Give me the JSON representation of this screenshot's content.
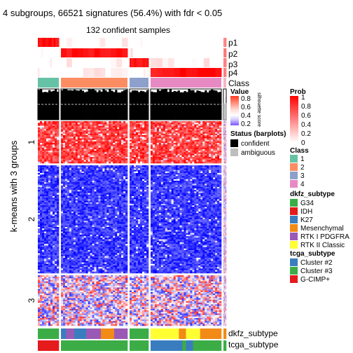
{
  "title": "4 subgroups, 66521 signatures (56.4%) with fdr < 0.05",
  "subtitle": "132 confident samples",
  "row_title": "k-means with 3 groups",
  "row_groups": [
    "1",
    "2",
    "3"
  ],
  "track_labels": {
    "p1": "p1",
    "p2": "p2",
    "p3": "p3",
    "p4": "p4",
    "class": "Class",
    "dkfz": "dkfz_subtype",
    "tcga": "tcga_subtype"
  },
  "silhouette_legend": {
    "title": "Value",
    "ticks": [
      "0.8",
      "0.6",
      "0.4",
      "0.2"
    ],
    "side_label": "silhouette score"
  },
  "status_legend": {
    "title": "Status (barplots)",
    "items": [
      {
        "label": "confident",
        "color": "#000000"
      },
      {
        "label": "ambiguous",
        "color": "#bebebe"
      }
    ]
  },
  "prob_legend": {
    "title": "Prob",
    "ticks": [
      "1",
      "0.8",
      "0.6",
      "0.4",
      "0.2",
      "0"
    ]
  },
  "class_legend": {
    "title": "Class",
    "items": [
      {
        "label": "1",
        "color": "#66c2a5"
      },
      {
        "label": "2",
        "color": "#fc8d62"
      },
      {
        "label": "3",
        "color": "#8da0cb"
      },
      {
        "label": "4",
        "color": "#e78ac3"
      }
    ]
  },
  "dkfz_legend": {
    "title": "dkfz_subtype",
    "items": [
      {
        "label": "G34",
        "color": "#3cad46"
      },
      {
        "label": "IDH",
        "color": "#e41a1c"
      },
      {
        "label": "K27",
        "color": "#3a7dbf"
      },
      {
        "label": "Mesenchymal",
        "color": "#f28a16"
      },
      {
        "label": "RTK I PDGFRA",
        "color": "#9b59b6"
      },
      {
        "label": "RTK II Classic",
        "color": "#ffff33"
      }
    ]
  },
  "tcga_legend": {
    "title": "tcga_subtype",
    "items": [
      {
        "label": "Cluster #2",
        "color": "#3a7dbf"
      },
      {
        "label": "Cluster #3",
        "color": "#3cad46"
      },
      {
        "label": "G-CIMP+",
        "color": "#e41a1c"
      }
    ]
  },
  "chart_data": {
    "type": "heatmap",
    "title": "4 subgroups, 66521 signatures (56.4%) with fdr < 0.05",
    "subtitle": "132 confident samples",
    "column_groups": [
      {
        "class": "1",
        "fraction": 0.115
      },
      {
        "class": "2",
        "fraction": 0.369
      },
      {
        "class": "3",
        "fraction": 0.105
      },
      {
        "class": "4",
        "fraction": 0.393
      },
      {
        "class": "ambiguous",
        "fraction": 0.018
      }
    ],
    "row_groups": [
      {
        "label": "1",
        "fraction": 0.21
      },
      {
        "label": "2",
        "fraction": 0.54
      },
      {
        "label": "3",
        "fraction": 0.25
      }
    ],
    "row_group_pattern": [
      [
        "high",
        "high",
        "high",
        "high"
      ],
      [
        "low",
        "low",
        "low",
        "low"
      ],
      [
        "mixed",
        "mixed",
        "mixed",
        "mixed"
      ]
    ],
    "membership_probability": {
      "p1": "class 1",
      "p2": "class 2",
      "p3": "class 3",
      "p4": "class 4"
    },
    "silhouette_reference": 0.5,
    "value_colors": {
      "low": "#0000ff",
      "mid": "#ffffff",
      "high": "#ff0000"
    },
    "prob_colors": {
      "low": "#ffffff",
      "high": "#ff0000"
    }
  }
}
